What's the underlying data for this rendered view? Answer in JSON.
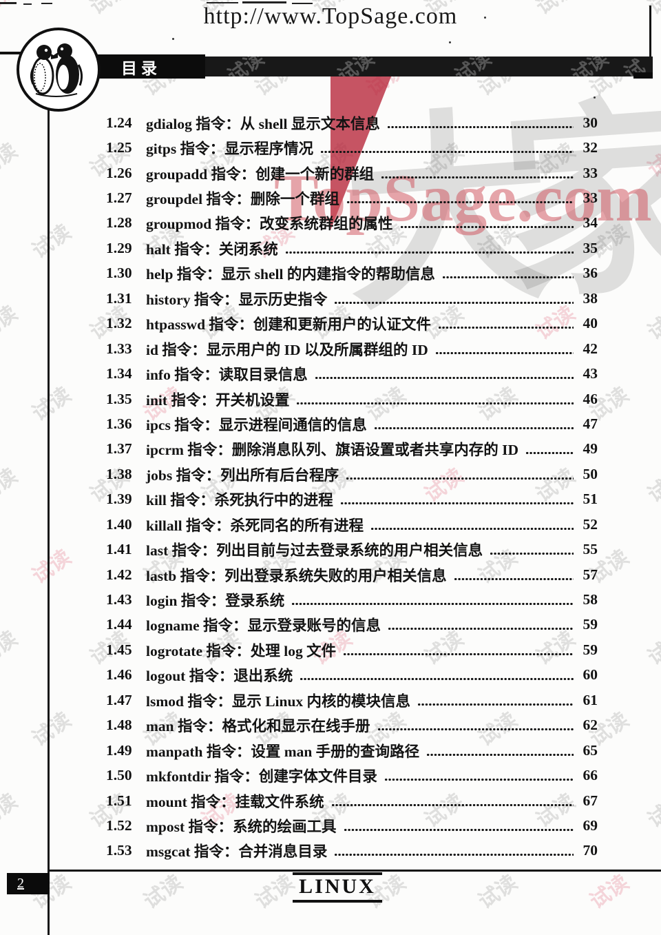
{
  "header": {
    "url": "http://www.TopSage.com",
    "section_title": "目录"
  },
  "watermarks": {
    "tile_text": "试读",
    "brand_text": "TopSage.com",
    "logo_text": "大家网"
  },
  "toc": {
    "entries": [
      {
        "num": "1.24",
        "title": "gdialog 指令：从 shell 显示文本信息",
        "page": "30"
      },
      {
        "num": "1.25",
        "title": "gitps 指令：显示程序情况",
        "page": "32"
      },
      {
        "num": "1.26",
        "title": "groupadd 指令：创建一个新的群组",
        "page": "33"
      },
      {
        "num": "1.27",
        "title": "groupdel 指令：删除一个群组",
        "page": "33"
      },
      {
        "num": "1.28",
        "title": "groupmod 指令：改变系统群组的属性",
        "page": "34"
      },
      {
        "num": "1.29",
        "title": "halt 指令：关闭系统",
        "page": "35"
      },
      {
        "num": "1.30",
        "title": "help 指令：显示 shell 的内建指令的帮助信息",
        "page": "36"
      },
      {
        "num": "1.31",
        "title": "history 指令：显示历史指令",
        "page": "38"
      },
      {
        "num": "1.32",
        "title": "htpasswd 指令：创建和更新用户的认证文件",
        "page": "40"
      },
      {
        "num": "1.33",
        "title": "id 指令：显示用户的 ID 以及所属群组的 ID",
        "page": "42"
      },
      {
        "num": "1.34",
        "title": "info 指令：读取目录信息",
        "page": "43"
      },
      {
        "num": "1.35",
        "title": "init 指令：开关机设置",
        "page": "46"
      },
      {
        "num": "1.36",
        "title": "ipcs 指令：显示进程间通信的信息",
        "page": "47"
      },
      {
        "num": "1.37",
        "title": "ipcrm 指令：删除消息队列、旗语设置或者共享内存的 ID",
        "page": "49"
      },
      {
        "num": "1.38",
        "title": "jobs 指令：列出所有后台程序",
        "page": "50"
      },
      {
        "num": "1.39",
        "title": "kill 指令：杀死执行中的进程",
        "page": "51"
      },
      {
        "num": "1.40",
        "title": "killall 指令：杀死同名的所有进程",
        "page": "52"
      },
      {
        "num": "1.41",
        "title": "last 指令：列出目前与过去登录系统的用户相关信息",
        "page": "55"
      },
      {
        "num": "1.42",
        "title": "lastb 指令：列出登录系统失败的用户相关信息",
        "page": "57"
      },
      {
        "num": "1.43",
        "title": "login 指令：登录系统",
        "page": "58"
      },
      {
        "num": "1.44",
        "title": "logname 指令：显示登录账号的信息",
        "page": "59"
      },
      {
        "num": "1.45",
        "title": "logrotate 指令：处理 log 文件",
        "page": "59"
      },
      {
        "num": "1.46",
        "title": "logout 指令：退出系统",
        "page": "60"
      },
      {
        "num": "1.47",
        "title": "lsmod 指令：显示 Linux 内核的模块信息",
        "page": "61"
      },
      {
        "num": "1.48",
        "title": "man 指令：格式化和显示在线手册",
        "page": "62"
      },
      {
        "num": "1.49",
        "title": "manpath 指令：设置 man 手册的查询路径",
        "page": "65"
      },
      {
        "num": "1.50",
        "title": "mkfontdir 指令：创建字体文件目录",
        "page": "66"
      },
      {
        "num": "1.51",
        "title": "mount 指令：挂载文件系统",
        "page": "67"
      },
      {
        "num": "1.52",
        "title": "mpost 指令：系统的绘画工具",
        "page": "69"
      },
      {
        "num": "1.53",
        "title": "msgcat 指令：合并消息目录",
        "page": "70"
      }
    ]
  },
  "footer": {
    "page_number": "2",
    "brand": "LINUX"
  }
}
